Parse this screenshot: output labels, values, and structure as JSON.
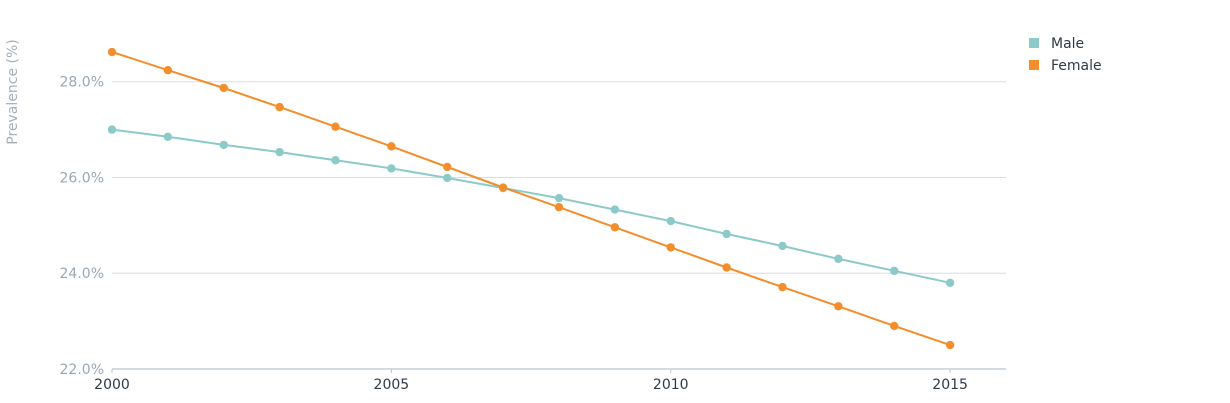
{
  "chart_data": {
    "type": "line",
    "title": "",
    "xlabel": "",
    "ylabel": "Prevalence (%)",
    "x": [
      2000,
      2001,
      2002,
      2003,
      2004,
      2005,
      2006,
      2007,
      2008,
      2009,
      2010,
      2011,
      2012,
      2013,
      2014,
      2015
    ],
    "x_ticks": [
      "2000",
      "2005",
      "2010",
      "2015"
    ],
    "y_ticks": [
      "22.0%",
      "24.0%",
      "26.0%",
      "28.0%"
    ],
    "y_tick_values": [
      22,
      24,
      26,
      28
    ],
    "ylim": [
      22,
      28.6
    ],
    "xlim": [
      2000,
      2016
    ],
    "grid": true,
    "legend_position": "top-right",
    "series": [
      {
        "name": "Male",
        "color": "#8ccac9",
        "values": [
          27.0,
          26.85,
          26.68,
          26.53,
          26.36,
          26.19,
          25.99,
          25.78,
          25.57,
          25.33,
          25.09,
          24.82,
          24.57,
          24.3,
          24.05,
          23.8
        ]
      },
      {
        "name": "Female",
        "color": "#f28e2b",
        "values": [
          28.62,
          28.24,
          27.87,
          27.47,
          27.06,
          26.65,
          26.22,
          25.79,
          25.38,
          24.96,
          24.54,
          24.12,
          23.71,
          23.31,
          22.9,
          22.5
        ]
      }
    ]
  }
}
